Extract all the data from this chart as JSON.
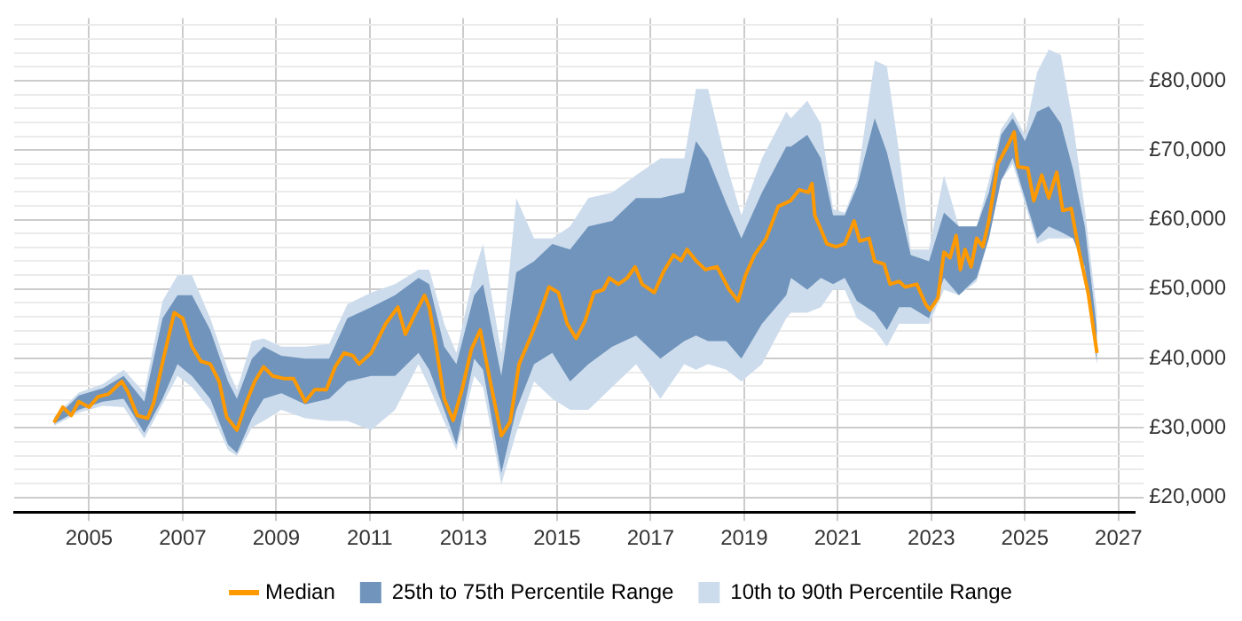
{
  "chart_data": {
    "type": "line",
    "xlim": [
      2003.4,
      2027.35
    ],
    "xticks": [
      2005,
      2007,
      2009,
      2011,
      2013,
      2015,
      2017,
      2019,
      2021,
      2023,
      2025,
      2027
    ],
    "ylim": [
      17900,
      89000
    ],
    "yticks": [
      {
        "value": 20000,
        "label": "£20,000"
      },
      {
        "value": 22000,
        "label": null
      },
      {
        "value": 24000,
        "label": null
      },
      {
        "value": 26000,
        "label": null
      },
      {
        "value": 28000,
        "label": null
      },
      {
        "value": 30000,
        "label": "£30,000"
      },
      {
        "value": 32000,
        "label": null
      },
      {
        "value": 34000,
        "label": null
      },
      {
        "value": 36000,
        "label": null
      },
      {
        "value": 38000,
        "label": null
      },
      {
        "value": 40000,
        "label": "£40,000"
      },
      {
        "value": 42000,
        "label": null
      },
      {
        "value": 44000,
        "label": null
      },
      {
        "value": 46000,
        "label": null
      },
      {
        "value": 48000,
        "label": null
      },
      {
        "value": 50000,
        "label": "£50,000"
      },
      {
        "value": 52000,
        "label": null
      },
      {
        "value": 54000,
        "label": null
      },
      {
        "value": 56000,
        "label": null
      },
      {
        "value": 58000,
        "label": null
      },
      {
        "value": 60000,
        "label": "£60,000"
      },
      {
        "value": 62000,
        "label": null
      },
      {
        "value": 64000,
        "label": null
      },
      {
        "value": 66000,
        "label": null
      },
      {
        "value": 68000,
        "label": null
      },
      {
        "value": 70000,
        "label": "£70,000"
      },
      {
        "value": 72000,
        "label": null
      },
      {
        "value": 74000,
        "label": null
      },
      {
        "value": 76000,
        "label": null
      },
      {
        "value": 78000,
        "label": null
      },
      {
        "value": 80000,
        "label": "£80,000"
      },
      {
        "value": 82000,
        "label": null
      },
      {
        "value": 84000,
        "label": null
      },
      {
        "value": 86000,
        "label": null
      },
      {
        "value": 88000,
        "label": null
      }
    ],
    "grid": true,
    "legend": "bottom",
    "marker": "none",
    "line_style": "solid",
    "series": [
      {
        "name": "Median",
        "type": "line",
        "color": "#ff9900",
        "x": [
          2004.25,
          2004.44,
          2004.62,
          2004.78,
          2005.0,
          2005.19,
          2005.42,
          2005.7,
          2005.83,
          2006.03,
          2006.25,
          2006.38,
          2006.59,
          2006.82,
          2007.0,
          2007.2,
          2007.39,
          2007.59,
          2007.78,
          2007.94,
          2008.16,
          2008.35,
          2008.54,
          2008.73,
          2008.92,
          2009.18,
          2009.37,
          2009.62,
          2009.82,
          2010.07,
          2010.26,
          2010.45,
          2010.64,
          2010.77,
          2011.03,
          2011.34,
          2011.6,
          2011.76,
          2011.98,
          2012.17,
          2012.27,
          2012.4,
          2012.59,
          2012.78,
          2012.97,
          2013.17,
          2013.36,
          2013.55,
          2013.81,
          2014.0,
          2014.19,
          2014.45,
          2014.64,
          2014.83,
          2015.03,
          2015.22,
          2015.41,
          2015.6,
          2015.79,
          2015.99,
          2016.12,
          2016.31,
          2016.5,
          2016.67,
          2016.82,
          2017.08,
          2017.27,
          2017.49,
          2017.65,
          2017.78,
          2017.97,
          2018.17,
          2018.42,
          2018.68,
          2018.87,
          2019.03,
          2019.22,
          2019.47,
          2019.73,
          2019.99,
          2020.18,
          2020.37,
          2020.45,
          2020.51,
          2020.64,
          2020.77,
          2020.96,
          2021.15,
          2021.35,
          2021.47,
          2021.67,
          2021.79,
          2021.99,
          2022.12,
          2022.31,
          2022.44,
          2022.69,
          2022.88,
          2022.97,
          2023.14,
          2023.27,
          2023.4,
          2023.53,
          2023.62,
          2023.72,
          2023.85,
          2023.97,
          2024.1,
          2024.23,
          2024.42,
          2024.62,
          2024.77,
          2024.85,
          2025.06,
          2025.19,
          2025.36,
          2025.51,
          2025.68,
          2025.81,
          2025.99,
          2026.15,
          2026.35,
          2026.54
        ],
        "values": [
          30800,
          33000,
          31800,
          33800,
          33000,
          34500,
          34900,
          36700,
          35200,
          31800,
          31400,
          33600,
          40000,
          46600,
          45800,
          41700,
          39600,
          39200,
          36700,
          31600,
          29700,
          33500,
          36700,
          38800,
          37500,
          37100,
          37100,
          33800,
          35500,
          35500,
          38800,
          40800,
          40400,
          39200,
          40800,
          45000,
          47400,
          43500,
          46600,
          49100,
          47400,
          42500,
          34200,
          31100,
          35500,
          41300,
          44100,
          37500,
          28900,
          30900,
          39200,
          43300,
          46600,
          50300,
          49500,
          45000,
          42900,
          45400,
          49500,
          49900,
          51600,
          50700,
          51600,
          53200,
          50700,
          49500,
          52400,
          54900,
          54100,
          55700,
          54100,
          52800,
          53200,
          49900,
          48300,
          52000,
          54900,
          57300,
          61900,
          62700,
          64300,
          63900,
          65200,
          60600,
          58600,
          56500,
          56100,
          56500,
          59800,
          56900,
          57300,
          54000,
          53600,
          50700,
          51100,
          50300,
          50700,
          47800,
          47000,
          48700,
          55300,
          54500,
          57700,
          52800,
          55700,
          53200,
          57300,
          56100,
          59800,
          68000,
          70500,
          72600,
          67600,
          67400,
          62700,
          66400,
          63100,
          66800,
          61300,
          61600,
          55700,
          49500,
          40800
        ]
      },
      {
        "name": "25th to 75th Percentile Range",
        "type": "area",
        "color": "#7094bc",
        "values": [
          null,
          null,
          null,
          null,
          null,
          null,
          null,
          null,
          null,
          null,
          null,
          null,
          null,
          null,
          null,
          null,
          null,
          null,
          null,
          null,
          null,
          null,
          null,
          null,
          null,
          null,
          null,
          null,
          null,
          null,
          null,
          null,
          null,
          null,
          null,
          null,
          null,
          null,
          null,
          null,
          null,
          null,
          null,
          null,
          null,
          null,
          null,
          null,
          null,
          null,
          null,
          null,
          null,
          null,
          null,
          null,
          null,
          null,
          null,
          null,
          null,
          null,
          null,
          null,
          null
        ],
        "x": [
          2004.25,
          2004.78,
          2005.29,
          2005.74,
          2006.18,
          2006.57,
          2006.89,
          2007.2,
          2007.59,
          2007.97,
          2008.16,
          2008.48,
          2008.73,
          2009.11,
          2009.62,
          2010.13,
          2010.52,
          2011.03,
          2011.54,
          2012.04,
          2012.27,
          2012.59,
          2012.85,
          2013.23,
          2013.42,
          2013.81,
          2014.13,
          2014.51,
          2014.9,
          2015.28,
          2015.67,
          2016.18,
          2016.69,
          2017.21,
          2017.72,
          2017.97,
          2018.23,
          2018.62,
          2018.94,
          2019.38,
          2019.9,
          2020.0,
          2020.35,
          2020.64,
          2020.9,
          2021.15,
          2021.41,
          2021.79,
          2022.05,
          2022.31,
          2022.56,
          2022.95,
          2023.27,
          2023.59,
          2023.97,
          2024.23,
          2024.49,
          2024.74,
          2025.0,
          2025.26,
          2025.51,
          2025.77,
          2026.03,
          2026.28,
          2026.54
        ],
        "lower": [
          30600,
          32600,
          33800,
          34200,
          29300,
          34200,
          39200,
          37500,
          34200,
          27600,
          26400,
          31400,
          34200,
          35000,
          33400,
          34200,
          36700,
          37500,
          37500,
          40800,
          38400,
          32600,
          27600,
          40000,
          38400,
          23500,
          32600,
          39200,
          40800,
          36700,
          39200,
          41700,
          43300,
          40000,
          42500,
          43300,
          42500,
          42500,
          40000,
          45000,
          49100,
          51600,
          49900,
          51600,
          50700,
          51600,
          48300,
          46600,
          44100,
          47400,
          47400,
          45800,
          51600,
          49100,
          51600,
          57300,
          65600,
          68900,
          63100,
          57300,
          59000,
          58200,
          57300,
          53200,
          39200
        ],
        "upper": [
          31200,
          34700,
          35700,
          37500,
          33800,
          45800,
          49100,
          49100,
          44100,
          36700,
          34200,
          40000,
          41700,
          40400,
          40000,
          40000,
          45800,
          47400,
          49100,
          51600,
          50700,
          41700,
          39200,
          49100,
          50700,
          37500,
          52400,
          54000,
          56500,
          55700,
          59000,
          59800,
          63100,
          63100,
          63900,
          71300,
          68800,
          62300,
          57300,
          63900,
          70500,
          70500,
          72200,
          68800,
          60600,
          60600,
          64700,
          74600,
          69700,
          62300,
          54900,
          54000,
          61000,
          59000,
          59000,
          63900,
          72200,
          74600,
          71300,
          75500,
          76300,
          73800,
          67200,
          59000,
          44100
        ]
      },
      {
        "name": "10th to 90th Percentile Range",
        "type": "area",
        "color": "#cddcec",
        "values": [
          null,
          null,
          null,
          null,
          null,
          null,
          null,
          null,
          null,
          null,
          null,
          null,
          null,
          null,
          null,
          null,
          null,
          null,
          null,
          null,
          null,
          null,
          null,
          null,
          null,
          null,
          null,
          null,
          null,
          null,
          null,
          null,
          null,
          null,
          null,
          null,
          null,
          null,
          null,
          null,
          null,
          null,
          null,
          null,
          null,
          null,
          null,
          null,
          null,
          null,
          null,
          null,
          null,
          null,
          null,
          null,
          null,
          null,
          null,
          null,
          null,
          null,
          null,
          null,
          null
        ],
        "x": [
          2004.25,
          2004.78,
          2005.29,
          2005.74,
          2006.18,
          2006.57,
          2006.89,
          2007.2,
          2007.59,
          2007.97,
          2008.16,
          2008.48,
          2008.73,
          2009.11,
          2009.62,
          2010.13,
          2010.52,
          2011.03,
          2011.54,
          2012.04,
          2012.27,
          2012.59,
          2012.85,
          2013.23,
          2013.42,
          2013.81,
          2014.13,
          2014.51,
          2014.9,
          2015.28,
          2015.67,
          2016.18,
          2016.69,
          2017.21,
          2017.72,
          2017.97,
          2018.23,
          2018.62,
          2018.94,
          2019.38,
          2019.9,
          2020.0,
          2020.35,
          2020.64,
          2020.9,
          2021.15,
          2021.41,
          2021.79,
          2022.05,
          2022.31,
          2022.56,
          2022.95,
          2023.27,
          2023.59,
          2023.97,
          2024.23,
          2024.49,
          2024.74,
          2025.0,
          2025.26,
          2025.51,
          2025.77,
          2026.03,
          2026.28,
          2026.54
        ],
        "lower": [
          30300,
          32200,
          33200,
          33000,
          28500,
          33400,
          37500,
          35900,
          32600,
          26800,
          26000,
          30100,
          31000,
          32600,
          31400,
          31000,
          31000,
          29700,
          32600,
          39200,
          35900,
          30900,
          26800,
          37500,
          35900,
          21900,
          29300,
          36700,
          34200,
          32600,
          32600,
          35900,
          39200,
          34200,
          39200,
          38400,
          39200,
          38400,
          36700,
          39200,
          45800,
          46600,
          46600,
          47400,
          49900,
          49900,
          45800,
          44100,
          41700,
          45000,
          45000,
          45000,
          49900,
          49100,
          51100,
          57300,
          65600,
          68000,
          62300,
          56500,
          57300,
          57300,
          57300,
          52400,
          39200
        ],
        "upper": [
          31600,
          35100,
          36300,
          38400,
          35100,
          48300,
          52000,
          52000,
          45800,
          38400,
          35500,
          42500,
          42900,
          41700,
          41700,
          42100,
          47800,
          49500,
          50700,
          52800,
          52800,
          45000,
          40800,
          52400,
          56500,
          40800,
          63100,
          57300,
          57300,
          59000,
          63100,
          63900,
          66400,
          68800,
          68800,
          78800,
          78800,
          68000,
          60600,
          68800,
          75500,
          74600,
          77100,
          73800,
          61500,
          61000,
          65600,
          82900,
          82100,
          69700,
          55700,
          55700,
          66400,
          59000,
          59000,
          65600,
          73000,
          75500,
          72200,
          81200,
          84500,
          83700,
          73800,
          61500,
          46600
        ]
      }
    ]
  }
}
